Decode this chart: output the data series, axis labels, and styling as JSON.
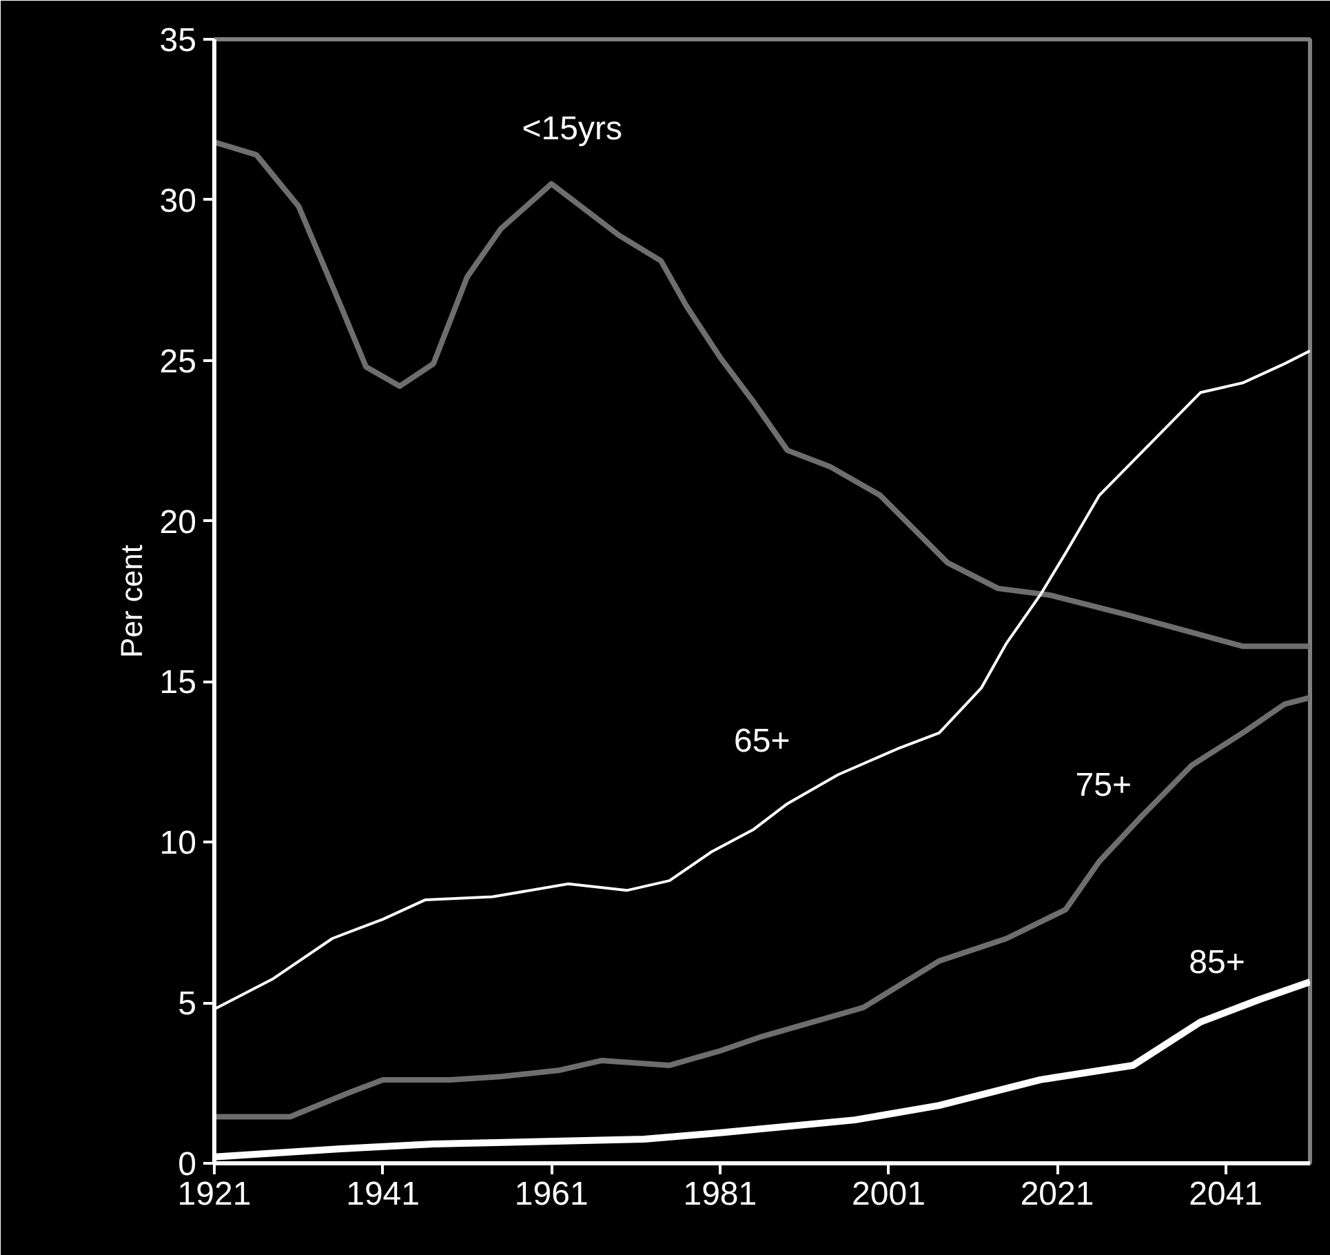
{
  "chart_data": {
    "type": "line",
    "ylabel": "Per cent",
    "xlim": [
      1921,
      2051
    ],
    "xticks": [
      1921,
      1941,
      1961,
      1981,
      2001,
      2021,
      2041
    ],
    "ylim": [
      0,
      35
    ],
    "yticks": [
      0,
      5,
      10,
      15,
      20,
      25,
      30,
      35
    ],
    "grid": false,
    "marker": "none",
    "line_style": "solid",
    "series": [
      {
        "name": "<15yrs",
        "color": "#6e6e6e",
        "x": [
          1921,
          1926,
          1931,
          1936,
          1939,
          1943,
          1947,
          1951,
          1955,
          1961,
          1969,
          1974,
          1977,
          1981,
          1985,
          1989,
          1994,
          2000,
          2008,
          2014,
          2020,
          2029,
          2036,
          2043,
          2051
        ],
        "values": [
          31.8,
          31.4,
          29.8,
          26.7,
          24.8,
          24.2,
          24.9,
          27.6,
          29.1,
          30.5,
          28.9,
          28.1,
          26.7,
          25.1,
          23.7,
          22.2,
          21.7,
          20.8,
          18.7,
          17.9,
          17.7,
          17.1,
          16.6,
          16.1,
          16.1
        ]
      },
      {
        "name": "65+",
        "color": "#ffffff",
        "x": [
          1921,
          1928,
          1935,
          1941,
          1946,
          1954,
          1963,
          1970,
          1975,
          1980,
          1985,
          1989,
          1995,
          2002,
          2007,
          2012,
          2015,
          2019,
          2022,
          2026,
          2032,
          2038,
          2043,
          2048,
          2051
        ],
        "values": [
          4.8,
          5.75,
          7.0,
          7.6,
          8.2,
          8.3,
          8.7,
          8.5,
          8.8,
          9.7,
          10.4,
          11.2,
          12.1,
          12.9,
          13.4,
          14.8,
          16.2,
          17.7,
          19.0,
          20.8,
          22.4,
          24.0,
          24.3,
          24.9,
          25.3
        ]
      },
      {
        "name": "75+",
        "color": "#6e6e6e",
        "x": [
          1921,
          1930,
          1937,
          1941,
          1949,
          1955,
          1962,
          1967,
          1975,
          1981,
          1986,
          1998,
          2007,
          2015,
          2022,
          2026,
          2031,
          2037,
          2043,
          2048,
          2051
        ],
        "values": [
          1.45,
          1.45,
          2.2,
          2.6,
          2.6,
          2.7,
          2.9,
          3.2,
          3.05,
          3.5,
          3.95,
          4.85,
          6.3,
          7.0,
          7.9,
          9.4,
          10.8,
          12.4,
          13.4,
          14.3,
          14.5
        ]
      },
      {
        "name": "85+",
        "color": "#ffffff",
        "x": [
          1921,
          1936,
          1947,
          1972,
          1981,
          1997,
          2007,
          2019,
          2030,
          2038,
          2045,
          2051
        ],
        "values": [
          0.2,
          0.45,
          0.6,
          0.75,
          0.95,
          1.35,
          1.8,
          2.6,
          3.05,
          4.4,
          5.1,
          5.65
        ]
      }
    ]
  }
}
